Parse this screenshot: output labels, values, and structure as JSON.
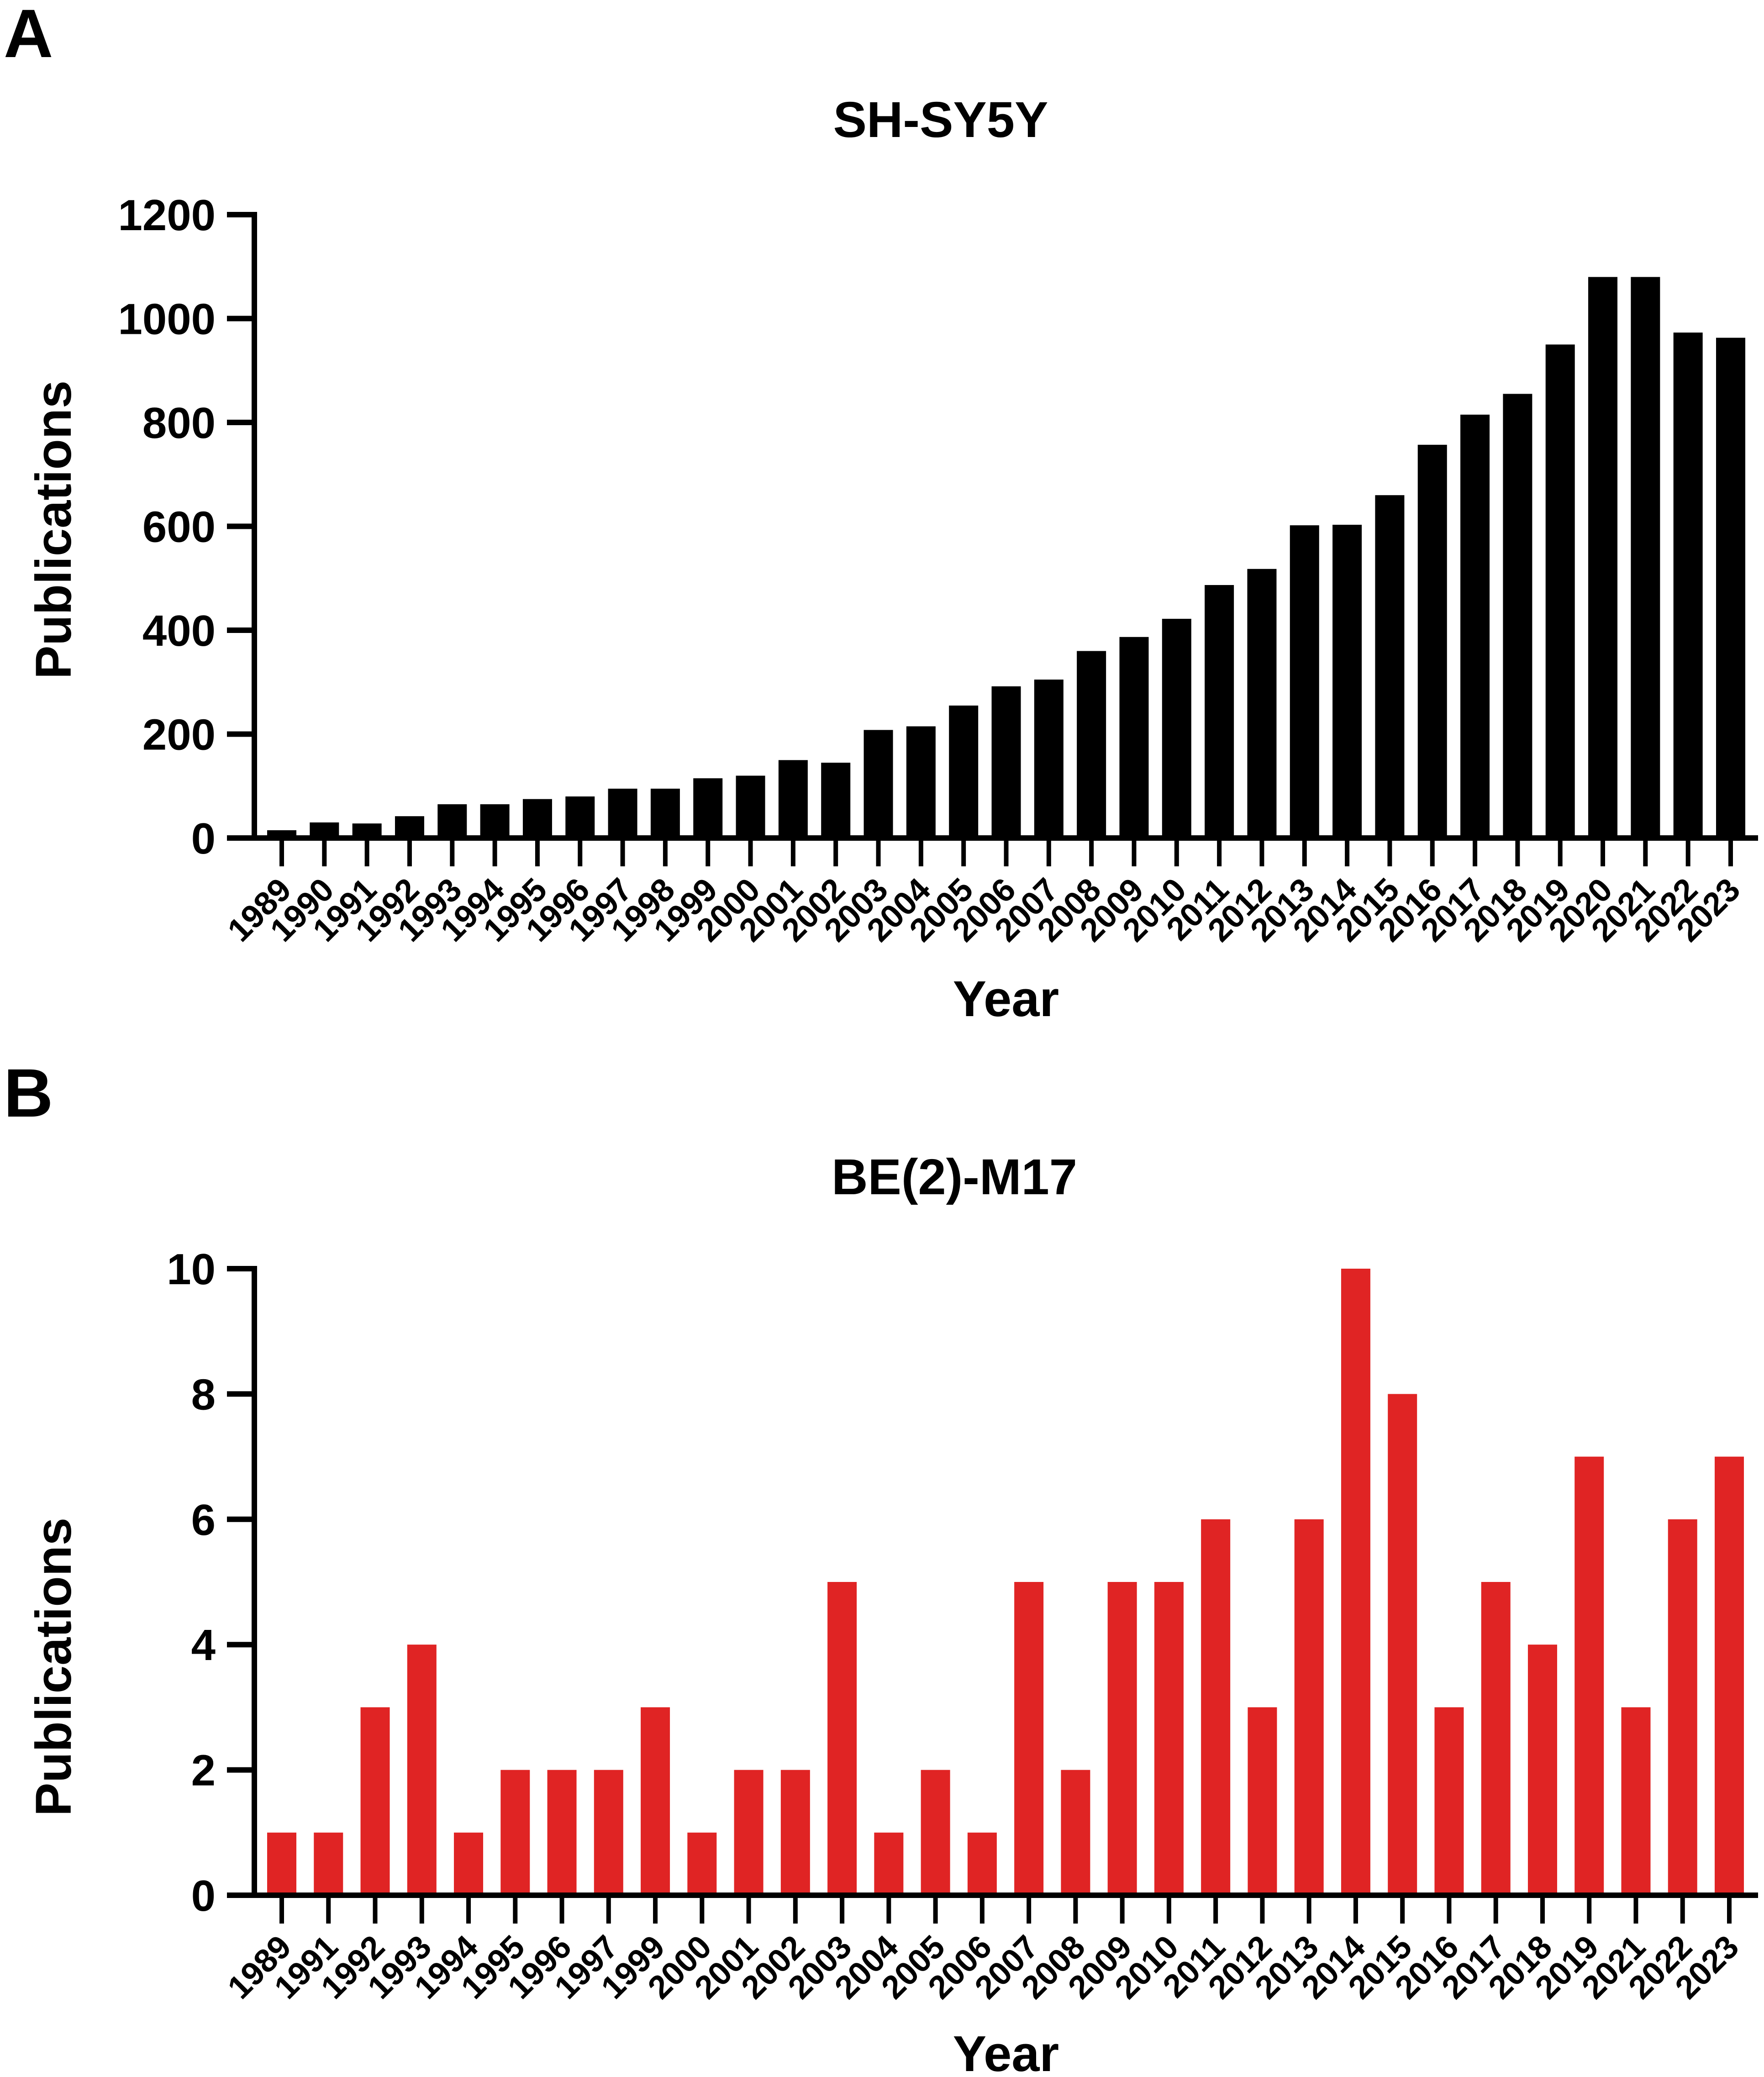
{
  "chart_data": [
    {
      "panel": "A",
      "type": "bar",
      "title": "SH-SY5Y",
      "xlabel": "Year",
      "ylabel": "Publications",
      "ylim": [
        0,
        1200
      ],
      "yticks": [
        "0",
        "200",
        "400",
        "600",
        "800",
        "1000",
        "1200"
      ],
      "grid": false,
      "color": "#000000",
      "categories": [
        "1989",
        "1990",
        "1991",
        "1992",
        "1993",
        "1994",
        "1995",
        "1996",
        "1997",
        "1998",
        "1999",
        "2000",
        "2001",
        "2002",
        "2003",
        "2004",
        "2005",
        "2006",
        "2007",
        "2008",
        "2009",
        "2010",
        "2011",
        "2012",
        "2013",
        "2014",
        "2015",
        "2016",
        "2017",
        "2018",
        "2019",
        "2020",
        "2021",
        "2022",
        "2023"
      ],
      "values": [
        15,
        30,
        28,
        42,
        65,
        65,
        75,
        80,
        95,
        95,
        115,
        120,
        150,
        145,
        208,
        215,
        255,
        292,
        305,
        360,
        387,
        422,
        487,
        518,
        602,
        603,
        660,
        757,
        815,
        855,
        950,
        1080,
        1080,
        973,
        963
      ]
    },
    {
      "panel": "B",
      "type": "bar",
      "title": "BE(2)-M17",
      "xlabel": "Year",
      "ylabel": "Publications",
      "ylim": [
        0,
        10
      ],
      "yticks": [
        "0",
        "2",
        "4",
        "6",
        "8",
        "10"
      ],
      "grid": false,
      "color": "#e02424",
      "categories": [
        "1989",
        "1991",
        "1992",
        "1993",
        "1994",
        "1995",
        "1996",
        "1997",
        "1999",
        "2000",
        "2001",
        "2002",
        "2003",
        "2004",
        "2005",
        "2006",
        "2007",
        "2008",
        "2009",
        "2010",
        "2011",
        "2012",
        "2013",
        "2014",
        "2015",
        "2016",
        "2017",
        "2018",
        "2019",
        "2021",
        "2022",
        "2023"
      ],
      "values": [
        1,
        1,
        3,
        4,
        1,
        2,
        2,
        2,
        3,
        1,
        2,
        2,
        5,
        1,
        2,
        1,
        5,
        2,
        5,
        5,
        6,
        3,
        6,
        10,
        8,
        3,
        5,
        4,
        7,
        3,
        6,
        7
      ]
    }
  ]
}
